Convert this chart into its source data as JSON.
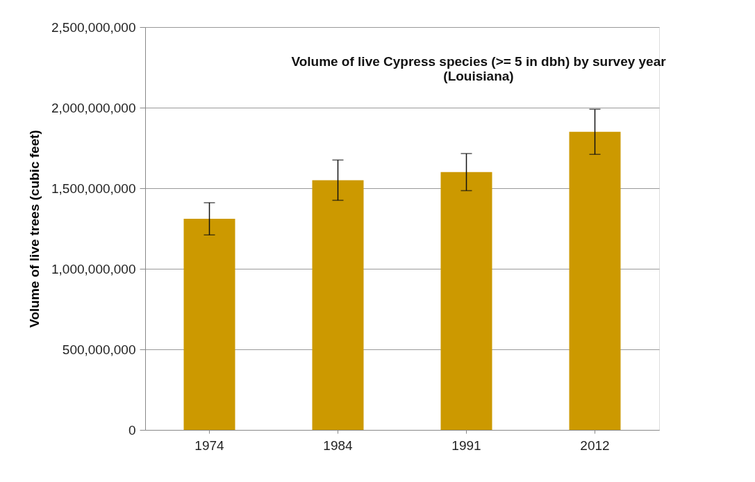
{
  "chart_data": {
    "type": "bar",
    "title": "Volume of live Cypress species (>= 5 in dbh) by survey year (Louisiana)",
    "ylabel": "Volume of live trees (cubic feet)",
    "categories": [
      "1974",
      "1984",
      "1991",
      "2012"
    ],
    "values": [
      1310000000,
      1550000000,
      1600000000,
      1850000000
    ],
    "errors": [
      100000000,
      125000000,
      115000000,
      140000000
    ],
    "color": "#cc9900",
    "ylim": [
      0,
      2500000000
    ],
    "yticks": [
      0,
      {
        "value": 500000000,
        "label": "500,000,000"
      },
      {
        "value": 1000000000,
        "label": "1,000,000,000"
      },
      {
        "value": 1500000000,
        "label": "1,500,000,000"
      },
      {
        "value": 2000000000,
        "label": "2,000,000,000"
      },
      {
        "value": 2500000000,
        "label": "2,500,000,000"
      }
    ],
    "grid": "y"
  }
}
